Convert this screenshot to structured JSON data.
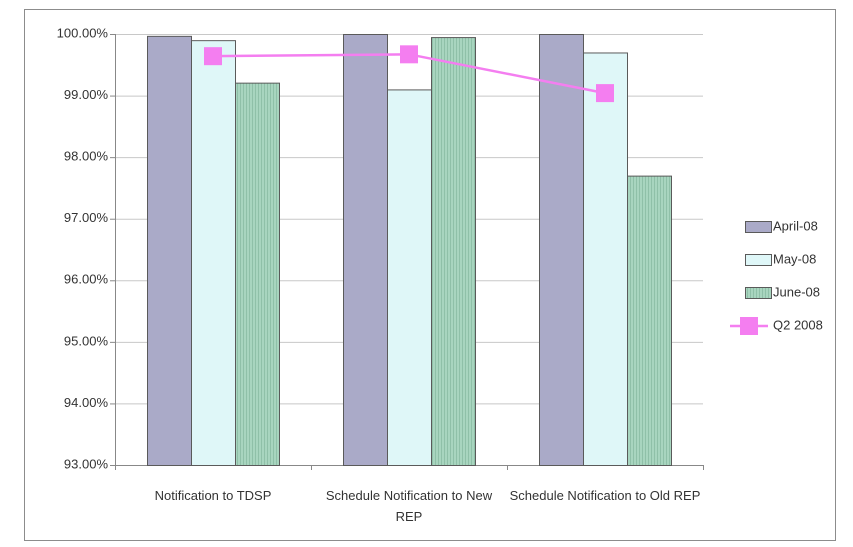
{
  "chart_data": {
    "type": "bar",
    "categories": [
      "Notification to TDSP",
      "Schedule Notification to New REP",
      "Schedule Notification to Old REP"
    ],
    "series": [
      {
        "name": "April-08",
        "color": "#aaaac8",
        "values": [
          99.97,
          100,
          100
        ]
      },
      {
        "name": "May-08",
        "color": "#dff7f8",
        "values": [
          99.9,
          99.1,
          99.7
        ]
      },
      {
        "name": "June-08",
        "color": "#a8d5bf",
        "values": [
          99.21,
          99.95,
          97.7
        ]
      },
      {
        "name": "Q2 2008",
        "type": "line",
        "color": "#f47ef0",
        "values": [
          99.64,
          99.67,
          99.04
        ]
      }
    ],
    "ylim": [
      93,
      100
    ],
    "yticks": [
      {
        "value": 93,
        "label": "93.00%"
      },
      {
        "value": 94,
        "label": "94.00%"
      },
      {
        "value": 95,
        "label": "95.00%"
      },
      {
        "value": 96,
        "label": "96.00%"
      },
      {
        "value": 97,
        "label": "97.00%"
      },
      {
        "value": 98,
        "label": "98.00%"
      },
      {
        "value": 99,
        "label": "99.00%"
      },
      {
        "value": 100,
        "label": "100.00%"
      }
    ],
    "grid": true,
    "legend": "right"
  }
}
